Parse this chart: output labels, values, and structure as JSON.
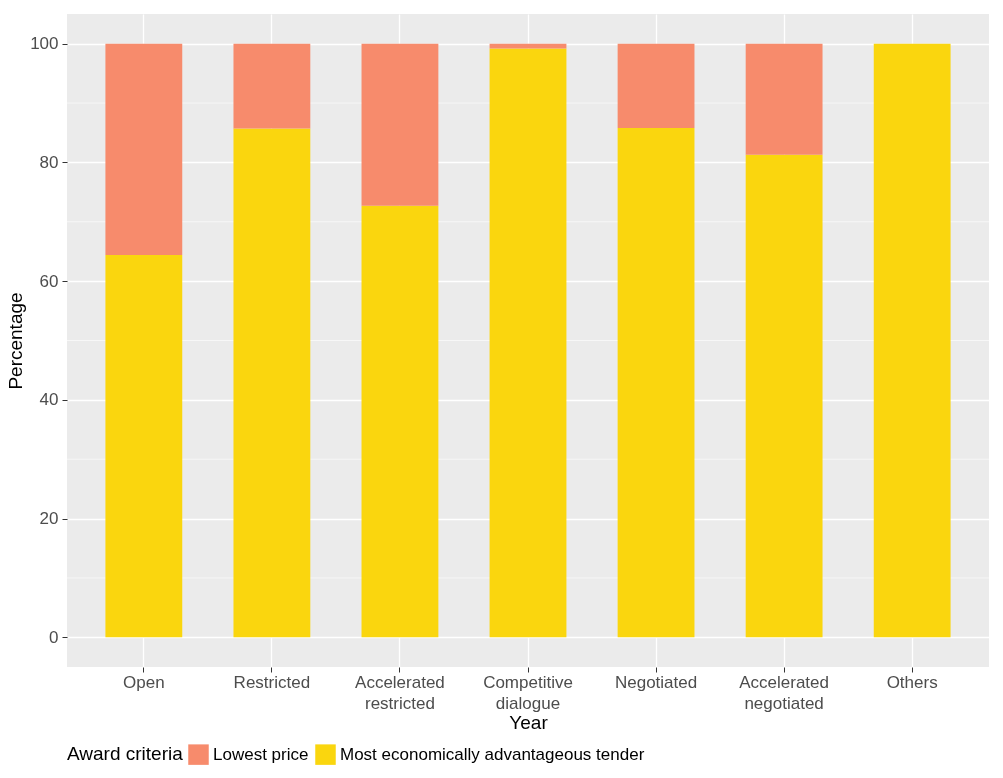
{
  "chart_data": {
    "type": "bar",
    "stacked": true,
    "categories": [
      "Open",
      "Restricted",
      "Accelerated restricted",
      "Competitive dialogue",
      "Negotiated",
      "Accelerated negotiated",
      "Others"
    ],
    "series": [
      {
        "name": "Most economically advantageous tender",
        "color": "#fad60e",
        "values": [
          64.4,
          85.7,
          72.7,
          99.2,
          85.8,
          81.3,
          100
        ]
      },
      {
        "name": "Lowest price",
        "color": "#f78b6c",
        "values": [
          35.6,
          14.3,
          27.3,
          0.8,
          14.2,
          18.7,
          0
        ]
      }
    ],
    "xlabel": "Year",
    "ylabel": "Percentage",
    "legend_title": "Award criteria",
    "ylim": [
      -5,
      105
    ],
    "yticks": [
      0,
      20,
      40,
      60,
      80,
      100
    ],
    "grid": true,
    "legend": "bottom"
  }
}
